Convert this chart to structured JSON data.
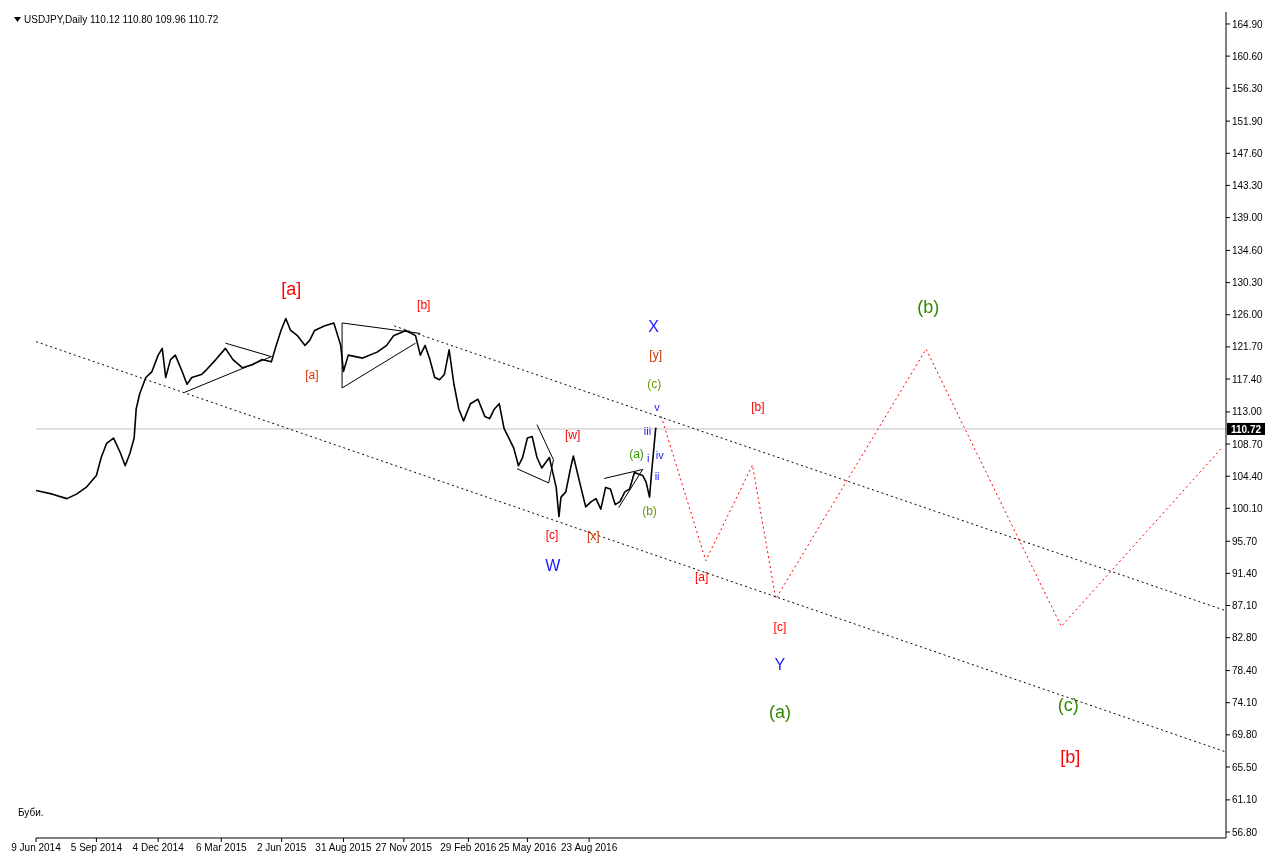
{
  "chart_data": {
    "type": "line",
    "title": "USDJPY,Daily 110.12 110.80 109.96 110.72",
    "xlim": [
      "2014-06-09",
      "2019-03-09"
    ],
    "xticks": [
      {
        "value": "2014-06-09",
        "label": "9 Jun 2014"
      },
      {
        "value": "2014-09-05",
        "label": "5 Sep 2014"
      },
      {
        "value": "2014-12-04",
        "label": "4 Dec 2014"
      },
      {
        "value": "2015-03-06",
        "label": "6 Mar 2015"
      },
      {
        "value": "2015-06-02",
        "label": "2 Jun 2015"
      },
      {
        "value": "2015-08-31",
        "label": "31 Aug 2015"
      },
      {
        "value": "2015-11-27",
        "label": "27 Nov 2015"
      },
      {
        "value": "2016-02-29",
        "label": "29 Feb 2016"
      },
      {
        "value": "2016-05-25",
        "label": "25 May 2016"
      },
      {
        "value": "2016-08-23",
        "label": "23 Aug 2016"
      }
    ],
    "ylim": [
      56,
      166.5
    ],
    "yticks": [
      {
        "value": 164.9,
        "label": "164.90"
      },
      {
        "value": 160.6,
        "label": "160.60"
      },
      {
        "value": 156.3,
        "label": "156.30"
      },
      {
        "value": 151.9,
        "label": "151.90"
      },
      {
        "value": 147.6,
        "label": "147.60"
      },
      {
        "value": 143.3,
        "label": "143.30"
      },
      {
        "value": 139,
        "label": "139.00"
      },
      {
        "value": 134.6,
        "label": "134.60"
      },
      {
        "value": 130.3,
        "label": "130.30"
      },
      {
        "value": 126,
        "label": "126.00"
      },
      {
        "value": 121.7,
        "label": "121.70"
      },
      {
        "value": 117.4,
        "label": "117.40"
      },
      {
        "value": 113,
        "label": "113.00"
      },
      {
        "value": 108.7,
        "label": "108.70"
      },
      {
        "value": 104.4,
        "label": "104.40"
      },
      {
        "value": 100.1,
        "label": "100.10"
      },
      {
        "value": 95.7,
        "label": "95.70"
      },
      {
        "value": 91.4,
        "label": "91.40"
      },
      {
        "value": 87.1,
        "label": "87.10"
      },
      {
        "value": 82.8,
        "label": "82.80"
      },
      {
        "value": 78.4,
        "label": "78.40"
      },
      {
        "value": 74.1,
        "label": "74.10"
      },
      {
        "value": 69.8,
        "label": "69.80"
      },
      {
        "value": 65.5,
        "label": "65.50"
      },
      {
        "value": 61.1,
        "label": "61.10"
      },
      {
        "value": 56.8,
        "label": "56.80"
      }
    ],
    "ref_lines": [
      {
        "axis": "y",
        "value": 110.72,
        "label": "110.72",
        "color": "#c0c0c0"
      }
    ],
    "series": [
      {
        "color": "#000000",
        "line_style": "solid",
        "x": [
          "2014-06-09",
          "2014-07-03",
          "2014-07-24",
          "2014-08-07",
          "2014-08-21",
          "2014-09-05",
          "2014-09-12",
          "2014-09-20",
          "2014-09-30",
          "2014-10-10",
          "2014-10-17",
          "2014-10-24",
          "2014-10-30",
          "2014-11-02",
          "2014-11-07",
          "2014-11-16",
          "2014-11-25",
          "2014-12-04",
          "2014-12-10",
          "2014-12-15",
          "2014-12-22",
          "2014-12-29",
          "2015-01-08",
          "2015-01-15",
          "2015-01-22",
          "2015-02-05",
          "2015-02-12",
          "2015-02-26",
          "2015-03-12",
          "2015-03-23",
          "2015-04-06",
          "2015-04-20",
          "2015-05-04",
          "2015-05-18",
          "2015-05-25",
          "2015-06-01",
          "2015-06-08",
          "2015-06-15",
          "2015-06-25",
          "2015-07-06",
          "2015-07-13",
          "2015-07-20",
          "2015-08-03",
          "2015-08-17",
          "2015-08-27",
          "2015-08-31",
          "2015-09-07",
          "2015-09-28",
          "2015-10-19",
          "2015-11-02",
          "2015-11-12",
          "2015-11-30",
          "2015-12-14",
          "2015-12-21",
          "2015-12-28",
          "2016-01-04",
          "2016-01-11",
          "2016-01-18",
          "2016-01-25",
          "2016-02-01",
          "2016-02-08",
          "2016-02-15",
          "2016-02-22",
          "2016-03-03",
          "2016-03-14",
          "2016-03-24",
          "2016-03-31",
          "2016-04-07",
          "2016-04-14",
          "2016-04-21",
          "2016-04-28",
          "2016-05-05",
          "2016-05-12",
          "2016-05-18",
          "2016-05-25",
          "2016-06-01",
          "2016-06-08",
          "2016-06-15",
          "2016-06-26",
          "2016-07-06",
          "2016-07-10",
          "2016-07-13",
          "2016-07-20",
          "2016-07-27",
          "2016-07-31",
          "2016-08-11",
          "2016-08-18",
          "2016-08-26",
          "2016-09-02",
          "2016-09-09",
          "2016-09-16",
          "2016-09-23",
          "2016-09-30",
          "2016-10-07",
          "2016-10-14",
          "2016-10-21",
          "2016-10-28",
          "2016-11-09",
          "2016-11-14",
          "2016-11-19",
          "2016-11-22",
          "2016-11-28",
          "2016-11-29"
        ],
        "values": [
          102.5,
          102.0,
          101.4,
          102.0,
          102.9,
          104.5,
          106.9,
          108.8,
          109.5,
          107.5,
          105.8,
          107.5,
          109.5,
          113.4,
          115.4,
          117.6,
          118.4,
          120.6,
          121.5,
          117.6,
          120.0,
          120.6,
          118.4,
          116.7,
          117.6,
          118.0,
          118.6,
          120.0,
          121.5,
          120.0,
          118.9,
          119.3,
          120.0,
          119.7,
          121.9,
          123.9,
          125.5,
          123.9,
          123.2,
          121.9,
          122.6,
          123.9,
          124.5,
          124.9,
          121.9,
          118.4,
          120.6,
          120.2,
          121.0,
          121.9,
          123.2,
          123.9,
          123.2,
          120.6,
          121.9,
          120.0,
          117.6,
          117.3,
          118.0,
          121.3,
          116.7,
          113.4,
          111.8,
          114.1,
          114.7,
          112.4,
          112.1,
          113.4,
          114.1,
          110.8,
          109.5,
          108.2,
          105.8,
          106.9,
          109.5,
          109.7,
          106.9,
          105.5,
          106.9,
          102.9,
          99.0,
          101.6,
          102.3,
          105.5,
          107.1,
          102.9,
          100.3,
          101.0,
          101.4,
          100.0,
          102.9,
          102.7,
          100.6,
          101.0,
          102.3,
          102.7,
          104.9,
          104.5,
          103.6,
          101.6,
          104.9,
          110.8,
          110.7
        ]
      },
      {
        "color": "#ff0000",
        "line_style": "dotted",
        "x": [
          "2016-12-06",
          "2017-02-09",
          "2017-04-18",
          "2017-05-22",
          "2017-12-27",
          "2018-07-12",
          "2019-03-04"
        ],
        "values": [
          112.4,
          93.1,
          105.9,
          88.0,
          121.4,
          84.3,
          108.3
        ]
      },
      {
        "color": "#000000",
        "line_style": "dotted",
        "x": [
          "2015-11-13",
          "2019-03-09"
        ],
        "values": [
          124.5,
          86.4
        ]
      },
      {
        "color": "#000000",
        "line_style": "dotted",
        "x": [
          "2014-06-09",
          "2019-03-09"
        ],
        "values": [
          122.4,
          67.5
        ]
      },
      {
        "color": "#000000",
        "line_style": "solid",
        "x": [
          "2015-03-12",
          "2015-05-18",
          "2015-01-11"
        ],
        "values": [
          122.2,
          120.4,
          115.6
        ]
      },
      {
        "color": "#000000",
        "line_style": "solid",
        "x": [
          "2015-12-14",
          "2015-08-29",
          "2015-08-29",
          "2015-12-21"
        ],
        "values": [
          122.2,
          116.2,
          124.9,
          123.5
        ]
      },
      {
        "color": "#000000",
        "line_style": "solid",
        "x": [
          "2016-06-08",
          "2016-07-02",
          "2016-06-25",
          "2016-05-10"
        ],
        "values": [
          111.3,
          106.6,
          103.5,
          105.4
        ]
      },
      {
        "color": "#000000",
        "line_style": "solid",
        "x": [
          "2016-09-14",
          "2016-11-09",
          "2016-10-05"
        ],
        "values": [
          104.1,
          105.3,
          100.2
        ]
      }
    ],
    "annotations": [
      "[a]",
      "[a]",
      "[b]",
      "[w]",
      "[c]",
      "[x]",
      "W",
      "X",
      "[y]",
      "(c)",
      "v",
      "iii",
      "(a)",
      "i",
      "iv",
      "ii",
      "(b)",
      "[a]",
      "[b]",
      "[c]",
      "Y",
      "(a)",
      "(b)",
      "(c)",
      "[b]",
      "Буби."
    ]
  }
}
